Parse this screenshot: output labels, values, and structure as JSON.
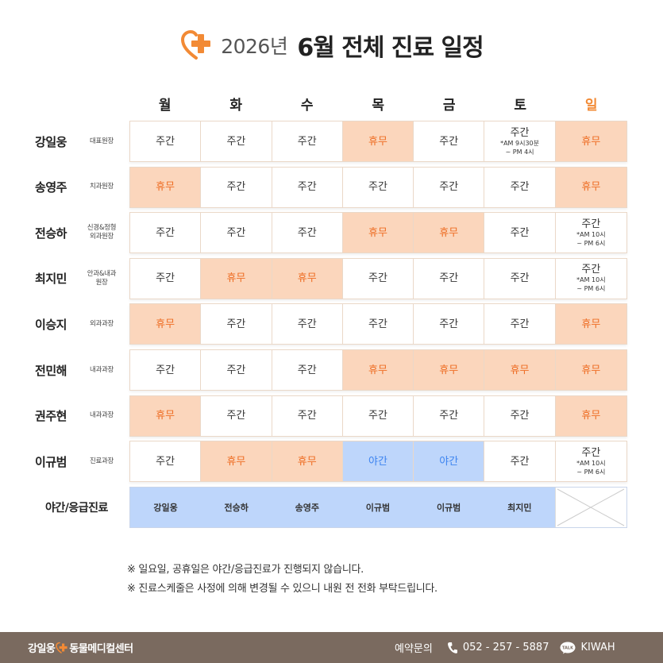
{
  "title": {
    "year": "2026년",
    "main": "6월 전체 진료 일정"
  },
  "days": [
    "월",
    "화",
    "수",
    "목",
    "금",
    "토",
    "일"
  ],
  "doctors": [
    {
      "name": "강일웅",
      "role": "대표원장",
      "cells": [
        {
          "t": "주간"
        },
        {
          "t": "주간"
        },
        {
          "t": "주간"
        },
        {
          "t": "휴무",
          "s": "off"
        },
        {
          "t": "주간"
        },
        {
          "t": "주간",
          "n1": "*AM 9시30분",
          "n2": "~ PM 4시"
        },
        {
          "t": "휴무",
          "s": "off"
        }
      ]
    },
    {
      "name": "송영주",
      "role": "치과원장",
      "cells": [
        {
          "t": "휴무",
          "s": "off"
        },
        {
          "t": "주간"
        },
        {
          "t": "주간"
        },
        {
          "t": "주간"
        },
        {
          "t": "주간"
        },
        {
          "t": "주간"
        },
        {
          "t": "휴무",
          "s": "off"
        }
      ]
    },
    {
      "name": "전승하",
      "role": "신경&정형\n외과원장",
      "cells": [
        {
          "t": "주간"
        },
        {
          "t": "주간"
        },
        {
          "t": "주간"
        },
        {
          "t": "휴무",
          "s": "off"
        },
        {
          "t": "휴무",
          "s": "off"
        },
        {
          "t": "주간"
        },
        {
          "t": "주간",
          "n1": "*AM 10시",
          "n2": "~ PM 6시"
        }
      ]
    },
    {
      "name": "최지민",
      "role": "안과&내과\n원장",
      "cells": [
        {
          "t": "주간"
        },
        {
          "t": "휴무",
          "s": "off"
        },
        {
          "t": "휴무",
          "s": "off"
        },
        {
          "t": "주간"
        },
        {
          "t": "주간"
        },
        {
          "t": "주간"
        },
        {
          "t": "주간",
          "n1": "*AM 10시",
          "n2": "~ PM 6시"
        }
      ]
    },
    {
      "name": "이승지",
      "role": "외과과장",
      "cells": [
        {
          "t": "휴무",
          "s": "off"
        },
        {
          "t": "주간"
        },
        {
          "t": "주간"
        },
        {
          "t": "주간"
        },
        {
          "t": "주간"
        },
        {
          "t": "주간"
        },
        {
          "t": "휴무",
          "s": "off"
        }
      ]
    },
    {
      "name": "전민해",
      "role": "내과과장",
      "cells": [
        {
          "t": "주간"
        },
        {
          "t": "주간"
        },
        {
          "t": "주간"
        },
        {
          "t": "휴무",
          "s": "off"
        },
        {
          "t": "휴무",
          "s": "off"
        },
        {
          "t": "휴무",
          "s": "off"
        },
        {
          "t": "휴무",
          "s": "off"
        }
      ]
    },
    {
      "name": "권주현",
      "role": "내과과장",
      "cells": [
        {
          "t": "휴무",
          "s": "off"
        },
        {
          "t": "주간"
        },
        {
          "t": "주간"
        },
        {
          "t": "주간"
        },
        {
          "t": "주간"
        },
        {
          "t": "주간"
        },
        {
          "t": "휴무",
          "s": "off"
        }
      ]
    },
    {
      "name": "이규범",
      "role": "진료과장",
      "cells": [
        {
          "t": "주간"
        },
        {
          "t": "휴무",
          "s": "off"
        },
        {
          "t": "휴무",
          "s": "off"
        },
        {
          "t": "야간",
          "s": "night"
        },
        {
          "t": "야간",
          "s": "night"
        },
        {
          "t": "주간"
        },
        {
          "t": "주간",
          "n1": "*AM 10시",
          "n2": "~ PM 6시"
        }
      ]
    }
  ],
  "emergency": {
    "label": "야간/응급진료",
    "cells": [
      "강일웅",
      "전승하",
      "송영주",
      "이규범",
      "이규범",
      "최지민"
    ]
  },
  "notes": [
    "※ 일요일, 공휴일은 야간/응급진료가 진행되지 않습니다.",
    "※ 진료스케줄은 사정에 의해 변경될 수 있으니 내원 전 전화 부탁드립니다."
  ],
  "footer": {
    "brand_left": "강일웅",
    "brand_right": "동물메디컬센터",
    "contact_label": "예약문의",
    "phone": "052 - 257 - 5887",
    "kakao_id": "KIWAH",
    "kakao_icon_text": "TALK"
  },
  "colors": {
    "accent": "#f28a35",
    "off_bg": "#fbd6bc",
    "off_text": "#ee6d24",
    "night_bg": "#bed6fb",
    "night_text": "#3d84f0",
    "footer_bg": "#7a6a5f"
  },
  "icons": {
    "logo": "heart-plus-icon",
    "phone": "phone-icon",
    "kakao": "kakaotalk-icon"
  }
}
